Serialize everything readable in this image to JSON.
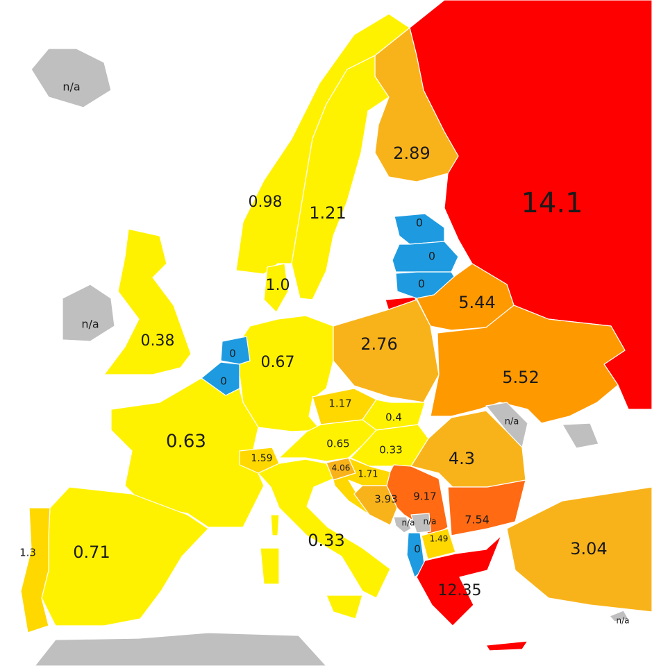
{
  "colors": {
    "yellow": "#FFF200",
    "yellow_orange": "#FFD800",
    "light_orange": "#F9B31A",
    "orange": "#FF9900",
    "red_orange": "#FF6A13",
    "red": "#FF0000",
    "blue": "#1E9BE0",
    "no_data": "#BFBFBF"
  },
  "regions": [
    {
      "id": "russia",
      "value": "14.1",
      "color": "red"
    },
    {
      "id": "kaliningrad",
      "value": "",
      "color": "red"
    },
    {
      "id": "finland",
      "value": "2.89",
      "color": "light_orange"
    },
    {
      "id": "norway",
      "value": "0.98",
      "color": "yellow"
    },
    {
      "id": "sweden",
      "value": "1.21",
      "color": "yellow"
    },
    {
      "id": "denmark",
      "value": "1.0",
      "color": "yellow"
    },
    {
      "id": "estonia",
      "value": "0",
      "color": "blue"
    },
    {
      "id": "latvia",
      "value": "0",
      "color": "blue"
    },
    {
      "id": "lithuania",
      "value": "0",
      "color": "blue"
    },
    {
      "id": "belarus",
      "value": "5.44",
      "color": "orange"
    },
    {
      "id": "ukraine",
      "value": "5.52",
      "color": "orange"
    },
    {
      "id": "moldova",
      "value": "n/a",
      "color": "no_data"
    },
    {
      "id": "crimea",
      "value": "",
      "color": "no_data"
    },
    {
      "id": "poland",
      "value": "2.76",
      "color": "light_orange"
    },
    {
      "id": "germany",
      "value": "0.67",
      "color": "yellow"
    },
    {
      "id": "netherlands",
      "value": "0",
      "color": "blue"
    },
    {
      "id": "belgium",
      "value": "0",
      "color": "blue"
    },
    {
      "id": "uk",
      "value": "0.38",
      "color": "yellow"
    },
    {
      "id": "ireland",
      "value": "n/a",
      "color": "no_data"
    },
    {
      "id": "iceland",
      "value": "n/a",
      "color": "no_data"
    },
    {
      "id": "france",
      "value": "0.63",
      "color": "yellow"
    },
    {
      "id": "switzerland",
      "value": "1.59",
      "color": "yellow_orange"
    },
    {
      "id": "italy",
      "value": "0.33",
      "color": "yellow"
    },
    {
      "id": "sicily",
      "value": "",
      "color": "yellow"
    },
    {
      "id": "sardinia",
      "value": "",
      "color": "yellow"
    },
    {
      "id": "corsica",
      "value": "",
      "color": "yellow"
    },
    {
      "id": "czechia",
      "value": "1.17",
      "color": "yellow_orange"
    },
    {
      "id": "slovakia",
      "value": "0.4",
      "color": "yellow"
    },
    {
      "id": "austria",
      "value": "0.65",
      "color": "yellow"
    },
    {
      "id": "hungary",
      "value": "0.33",
      "color": "yellow"
    },
    {
      "id": "slovenia",
      "value": "4.06",
      "color": "light_orange"
    },
    {
      "id": "croatia",
      "value": "1.71",
      "color": "yellow_orange"
    },
    {
      "id": "bosnia",
      "value": "3.93",
      "color": "light_orange"
    },
    {
      "id": "serbia",
      "value": "9.17",
      "color": "red_orange"
    },
    {
      "id": "romania",
      "value": "4.3",
      "color": "light_orange"
    },
    {
      "id": "bulgaria",
      "value": "7.54",
      "color": "red_orange"
    },
    {
      "id": "montenegro",
      "value": "n/a",
      "color": "no_data"
    },
    {
      "id": "kosovo",
      "value": "n/a",
      "color": "no_data"
    },
    {
      "id": "albania",
      "value": "0",
      "color": "blue"
    },
    {
      "id": "macedonia",
      "value": "1.49",
      "color": "yellow_orange"
    },
    {
      "id": "greece",
      "value": "12.35",
      "color": "red"
    },
    {
      "id": "crete",
      "value": "",
      "color": "red"
    },
    {
      "id": "turkey",
      "value": "3.04",
      "color": "light_orange"
    },
    {
      "id": "cyprus",
      "value": "n/a",
      "color": "no_data"
    },
    {
      "id": "spain",
      "value": "0.71",
      "color": "yellow"
    },
    {
      "id": "portugal",
      "value": "1.3",
      "color": "yellow_orange"
    },
    {
      "id": "north_africa",
      "value": "",
      "color": "no_data"
    }
  ]
}
